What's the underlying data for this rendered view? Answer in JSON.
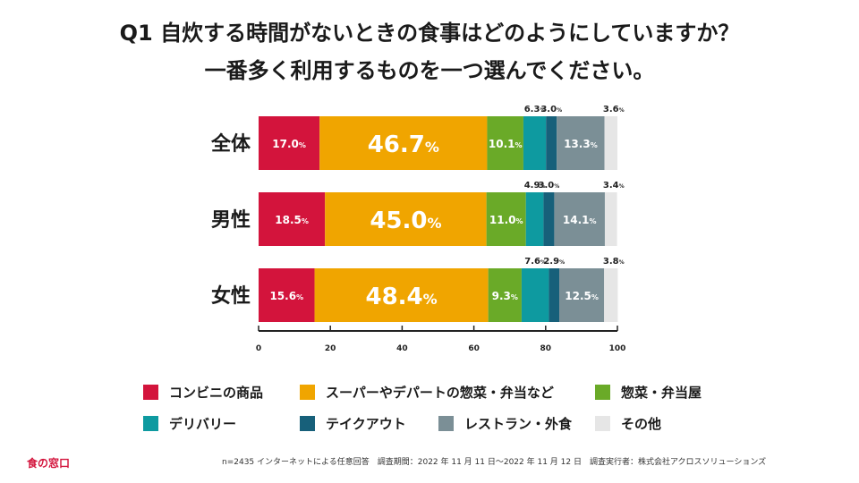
{
  "title_line1": "Q1 自炊する時間がないときの食事はどのようにしていますか？",
  "title_line2": "一番多く利用するものを一つ選んでください。",
  "chart_data": {
    "type": "bar",
    "orientation": "horizontal-stacked-100",
    "categories": [
      "全体",
      "男性",
      "女性"
    ],
    "unit": "%",
    "xlim": [
      0,
      100
    ],
    "xticks": [
      "0",
      "20",
      "40",
      "60",
      "80",
      "100"
    ],
    "series": [
      {
        "name": "コンビニの商品",
        "color": "#d3143c",
        "values": [
          17.0,
          18.5,
          15.6
        ]
      },
      {
        "name": "スーパーやデパートの惣菜・弁当など",
        "color": "#f0a500",
        "values": [
          46.7,
          45.0,
          48.4
        ]
      },
      {
        "name": "惣菜・弁当屋",
        "color": "#6aaa28",
        "values": [
          10.1,
          11.0,
          9.3
        ]
      },
      {
        "name": "デリバリー",
        "color": "#0e9aa0",
        "values": [
          6.3,
          4.9,
          7.6
        ]
      },
      {
        "name": "テイクアウト",
        "color": "#17607a",
        "values": [
          3.0,
          3.0,
          2.9
        ]
      },
      {
        "name": "レストラン・外食",
        "color": "#7b8f96",
        "values": [
          13.3,
          14.1,
          12.5
        ]
      },
      {
        "name": "その他",
        "color": "#e6e6e6",
        "values": [
          3.6,
          3.4,
          3.8
        ]
      }
    ]
  },
  "logo": "食の窓口",
  "footnote": "n=2435 インターネットによる任意回答　調査期間：2022 年 11 月 11 日〜2022 年 11 月 12 日　調査実行者：株式会社アクロスソリューションズ"
}
